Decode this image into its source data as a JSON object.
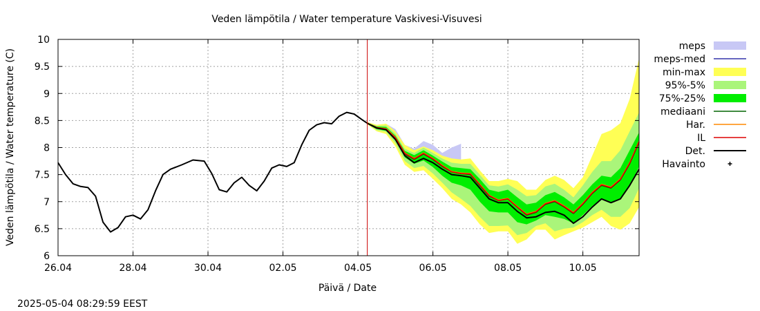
{
  "footer": {
    "timestamp": "2025-05-04  08:29:59 EEST"
  },
  "chart_data": {
    "type": "line",
    "title": "Veden lämpötila / Water temperature Vaskivesi-Visuvesi",
    "xlabel": "Päivä / Date",
    "ylabel": "Veden lämpötila / Water temperature (C)",
    "x_range_days": [
      26.0,
      11.5
    ],
    "x_start": "26.04",
    "x_end": "11.05",
    "xlim": [
      "2025-04-26",
      "2025-05-11T12:00"
    ],
    "ylim": [
      6,
      10
    ],
    "grid": true,
    "legend_position": "right",
    "x_ticks": [
      {
        "x": 0,
        "label": "26.04"
      },
      {
        "x": 2,
        "label": "28.04"
      },
      {
        "x": 4,
        "label": "30.04"
      },
      {
        "x": 6,
        "label": "02.05"
      },
      {
        "x": 8,
        "label": "04.05"
      },
      {
        "x": 10,
        "label": "06.05"
      },
      {
        "x": 12,
        "label": "08.05"
      },
      {
        "x": 14,
        "label": "10.05"
      }
    ],
    "y_ticks": [
      {
        "y": 6,
        "label": "6"
      },
      {
        "y": 6.5,
        "label": "6.5"
      },
      {
        "y": 7,
        "label": "7"
      },
      {
        "y": 7.5,
        "label": "7.5"
      },
      {
        "y": 8,
        "label": "8"
      },
      {
        "y": 8.5,
        "label": "8.5"
      },
      {
        "y": 9,
        "label": "9"
      },
      {
        "y": 9.5,
        "label": "9.5"
      },
      {
        "y": 10,
        "label": "10"
      }
    ],
    "forecast_start_x": 8.25,
    "colors": {
      "meps": "#c8c8f5",
      "meps_med": "#3333aa",
      "minmax": "#ffff55",
      "p95_5": "#aaf57a",
      "p75_25": "#00ee00",
      "mediaani": "#006400",
      "har": "#ff8800",
      "il": "#dd0000",
      "det": "#000000",
      "forecast_line": "#cc0000"
    },
    "legend": [
      {
        "key": "meps",
        "label": "meps",
        "style": "band"
      },
      {
        "key": "meps_med",
        "label": "meps-med",
        "style": "line"
      },
      {
        "key": "minmax",
        "label": "min-max",
        "style": "band"
      },
      {
        "key": "p95_5",
        "label": "95%-5%",
        "style": "band"
      },
      {
        "key": "p75_25",
        "label": "75%-25%",
        "style": "band"
      },
      {
        "key": "mediaani",
        "label": "mediaani",
        "style": "line"
      },
      {
        "key": "har",
        "label": "Har.",
        "style": "line"
      },
      {
        "key": "il",
        "label": "IL",
        "style": "line"
      },
      {
        "key": "det",
        "label": "Det.",
        "style": "line"
      },
      {
        "key": "havainto",
        "label": "Havainto",
        "style": "point"
      }
    ],
    "observed": {
      "x": [
        0,
        0.2,
        0.4,
        0.6,
        0.8,
        1.0,
        1.2,
        1.4,
        1.6,
        1.8,
        2.0,
        2.2,
        2.4,
        2.6,
        2.8,
        3.0,
        3.3,
        3.6,
        3.9,
        4.1,
        4.3,
        4.5,
        4.7,
        4.9,
        5.1,
        5.3,
        5.5,
        5.7,
        5.9,
        6.1,
        6.3,
        6.5,
        6.7,
        6.9,
        7.1,
        7.3,
        7.5,
        7.7,
        7.9,
        8.1,
        8.25
      ],
      "y": [
        7.72,
        7.5,
        7.33,
        7.28,
        7.26,
        7.1,
        6.62,
        6.44,
        6.52,
        6.72,
        6.75,
        6.68,
        6.85,
        7.2,
        7.5,
        7.6,
        7.68,
        7.77,
        7.75,
        7.52,
        7.22,
        7.18,
        7.35,
        7.45,
        7.3,
        7.2,
        7.38,
        7.62,
        7.68,
        7.65,
        7.72,
        8.05,
        8.32,
        8.42,
        8.46,
        8.44,
        8.58,
        8.65,
        8.62,
        8.52,
        8.45
      ]
    },
    "forecast_x": [
      8.25,
      8.5,
      8.75,
      9.0,
      9.25,
      9.5,
      9.75,
      10.0,
      10.25,
      10.5,
      10.75,
      11.0,
      11.25,
      11.5,
      11.75,
      12.0,
      12.25,
      12.5,
      12.75,
      13.0,
      13.25,
      13.5,
      13.75,
      14.0,
      14.25,
      14.5,
      14.75,
      15.0,
      15.25,
      15.5
    ],
    "series": [
      {
        "key": "det",
        "name": "Det.",
        "values": [
          8.45,
          8.36,
          8.33,
          8.15,
          7.85,
          7.72,
          7.8,
          7.72,
          7.6,
          7.5,
          7.48,
          7.45,
          7.25,
          7.05,
          6.98,
          6.98,
          6.82,
          6.7,
          6.72,
          6.8,
          6.82,
          6.75,
          6.6,
          6.72,
          6.9,
          7.05,
          6.98,
          7.05,
          7.3,
          7.6
        ]
      },
      {
        "key": "mediaani",
        "name": "mediaani",
        "values": [
          8.45,
          8.37,
          8.35,
          8.18,
          7.88,
          7.78,
          7.88,
          7.78,
          7.65,
          7.55,
          7.52,
          7.5,
          7.3,
          7.1,
          7.02,
          7.05,
          6.9,
          6.75,
          6.8,
          6.95,
          7.0,
          6.9,
          6.78,
          6.95,
          7.15,
          7.3,
          7.25,
          7.4,
          7.7,
          8.1
        ]
      },
      {
        "key": "har",
        "name": "Har.",
        "values": [
          8.45,
          8.37,
          8.35,
          8.19,
          7.9,
          7.8,
          7.9,
          7.8,
          7.67,
          7.56,
          7.53,
          7.52,
          7.32,
          7.12,
          7.03,
          7.06,
          6.91,
          6.77,
          6.82,
          6.97,
          7.02,
          6.92,
          6.8,
          6.97,
          7.17,
          7.32,
          7.27,
          7.42,
          7.72,
          8.12
        ]
      },
      {
        "key": "il",
        "name": "IL",
        "values": [
          8.45,
          8.37,
          8.34,
          8.18,
          7.89,
          7.79,
          7.89,
          7.79,
          7.66,
          7.55,
          7.52,
          7.51,
          7.31,
          7.11,
          7.02,
          7.05,
          6.9,
          6.76,
          6.81,
          6.96,
          7.01,
          6.91,
          6.79,
          6.96,
          7.16,
          7.31,
          7.26,
          7.41,
          7.71,
          8.11
        ]
      },
      {
        "key": "meps_med",
        "name": "meps-med",
        "values": [
          8.45,
          8.37,
          8.35,
          8.18,
          7.88,
          7.78,
          7.88,
          7.78,
          7.65,
          7.55,
          7.52,
          7.5,
          7.3,
          7.1,
          7.02,
          7.05,
          6.9,
          6.75,
          6.8,
          6.95,
          7.0,
          6.9,
          6.78,
          6.95,
          7.15,
          7.3,
          7.25,
          7.4,
          7.7,
          8.1
        ]
      }
    ],
    "bands": [
      {
        "key": "minmax",
        "name": "min-max",
        "low": [
          8.43,
          8.3,
          8.25,
          8.02,
          7.68,
          7.55,
          7.58,
          7.42,
          7.25,
          7.05,
          6.95,
          6.8,
          6.58,
          6.42,
          6.45,
          6.45,
          6.22,
          6.3,
          6.48,
          6.48,
          6.3,
          6.38,
          6.45,
          6.52,
          6.62,
          6.72,
          6.55,
          6.48,
          6.6,
          6.9
        ],
        "high": [
          8.47,
          8.42,
          8.44,
          8.3,
          8.05,
          7.95,
          8.02,
          7.95,
          7.85,
          7.8,
          7.78,
          7.8,
          7.58,
          7.38,
          7.38,
          7.42,
          7.38,
          7.22,
          7.22,
          7.4,
          7.48,
          7.4,
          7.25,
          7.45,
          7.85,
          8.25,
          8.32,
          8.45,
          8.9,
          9.65
        ]
      },
      {
        "key": "p95_5",
        "name": "95%-5%",
        "low": [
          8.44,
          8.32,
          8.29,
          8.08,
          7.75,
          7.62,
          7.66,
          7.52,
          7.35,
          7.17,
          7.05,
          6.92,
          6.72,
          6.55,
          6.55,
          6.56,
          6.38,
          6.42,
          6.55,
          6.6,
          6.45,
          6.5,
          6.52,
          6.62,
          6.75,
          6.85,
          6.72,
          6.72,
          6.88,
          7.25
        ],
        "high": [
          8.46,
          8.4,
          8.41,
          8.26,
          7.98,
          7.9,
          8.0,
          7.9,
          7.8,
          7.72,
          7.7,
          7.7,
          7.5,
          7.3,
          7.28,
          7.32,
          7.22,
          7.1,
          7.12,
          7.28,
          7.33,
          7.22,
          7.08,
          7.3,
          7.55,
          7.75,
          7.75,
          7.95,
          8.3,
          8.65
        ]
      },
      {
        "key": "p75_25",
        "name": "75%-25%",
        "low": [
          8.44,
          8.34,
          8.31,
          8.13,
          7.82,
          7.7,
          7.76,
          7.64,
          7.48,
          7.35,
          7.3,
          7.22,
          7.0,
          6.82,
          6.8,
          6.8,
          6.62,
          6.58,
          6.65,
          6.75,
          6.72,
          6.68,
          6.6,
          6.75,
          6.92,
          7.05,
          6.98,
          7.05,
          7.28,
          7.65
        ],
        "high": [
          8.46,
          8.39,
          8.38,
          8.22,
          7.94,
          7.86,
          7.95,
          7.85,
          7.74,
          7.64,
          7.62,
          7.6,
          7.42,
          7.22,
          7.18,
          7.22,
          7.08,
          6.95,
          6.98,
          7.12,
          7.18,
          7.08,
          6.95,
          7.12,
          7.32,
          7.48,
          7.45,
          7.62,
          7.95,
          8.28
        ]
      },
      {
        "key": "meps",
        "name": "meps",
        "low": [
          8.44,
          8.34,
          8.31,
          8.13,
          7.82,
          7.72,
          7.8,
          7.72,
          7.62,
          7.55,
          7.52
        ],
        "high": [
          8.46,
          8.42,
          8.44,
          8.34,
          8.05,
          7.98,
          8.12,
          8.05,
          7.9,
          8.0,
          8.07
        ]
      }
    ]
  }
}
